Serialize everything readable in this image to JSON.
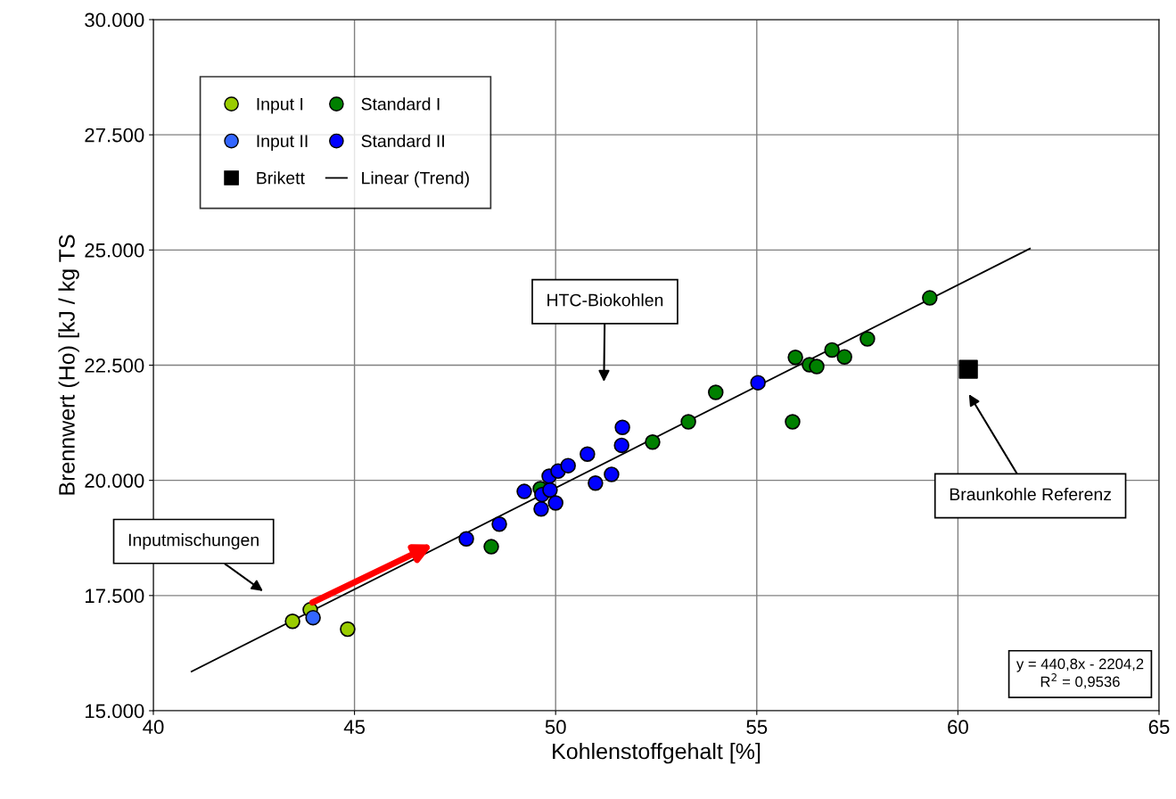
{
  "chart_data": {
    "type": "scatter",
    "xlabel": "Kohlenstoffgehalt [%]",
    "ylabel": "Brennwert (Ho) [kJ / kg TS",
    "xlim": [
      40,
      65
    ],
    "xticks": [
      40,
      45,
      50,
      55,
      60,
      65
    ],
    "ylim": [
      15000,
      30000
    ],
    "yticks": [
      {
        "value": 15000,
        "label": "15.000"
      },
      {
        "value": 17500,
        "label": "17.500"
      },
      {
        "value": 20000,
        "label": "20.000"
      },
      {
        "value": 22500,
        "label": "22.500"
      },
      {
        "value": 25000,
        "label": "25.000"
      },
      {
        "value": 27500,
        "label": "27.500"
      },
      {
        "value": 30000,
        "label": "30.000"
      }
    ],
    "grid": true,
    "legend": "top left",
    "marker": "circle",
    "series": [
      {
        "name": "Input I",
        "color": "#99cc00",
        "x": [
          43.46,
          43.9,
          44.83
        ],
        "values": [
          16940,
          17190,
          16770
        ]
      },
      {
        "name": "Input II",
        "color": "#3366ff",
        "x": [
          43.97
        ],
        "values": [
          17020
        ]
      },
      {
        "name": "Brikett",
        "color": "#000000",
        "marker": "square",
        "x": [
          60.26
        ],
        "values": [
          22410
        ]
      },
      {
        "name": "Standard I",
        "color": "#008000",
        "x": [
          48.4,
          49.62,
          52.41,
          53.3,
          53.98,
          55.89,
          55.96,
          56.31,
          56.49,
          56.87,
          57.18,
          57.75,
          59.3
        ],
        "values": [
          18560,
          19820,
          20830,
          21270,
          21910,
          21270,
          22670,
          22510,
          22470,
          22830,
          22680,
          23070,
          23960
        ]
      },
      {
        "name": "Standard II",
        "color": "#0000ff",
        "x": [
          47.78,
          48.6,
          49.22,
          49.64,
          49.66,
          49.84,
          49.86,
          50.0,
          50.06,
          50.31,
          50.79,
          50.99,
          51.39,
          51.64,
          51.66,
          55.03
        ],
        "values": [
          18730,
          19050,
          19760,
          19380,
          19690,
          20090,
          19790,
          19510,
          20200,
          20320,
          20570,
          19940,
          20130,
          20760,
          21150,
          22120
        ]
      },
      {
        "name": "Linear (Trend)",
        "type": "line",
        "color": "#000000",
        "marker": "none",
        "x": [
          40.95,
          61.79
        ],
        "values": [
          15850,
          25030
        ]
      }
    ],
    "annotations": [
      "Inputmischungen",
      "HTC-Biokohlen",
      "Braunkohle Referenz",
      "y = 440,8x - 2204,2\nR$^{2}$ = 0,9536"
    ]
  }
}
